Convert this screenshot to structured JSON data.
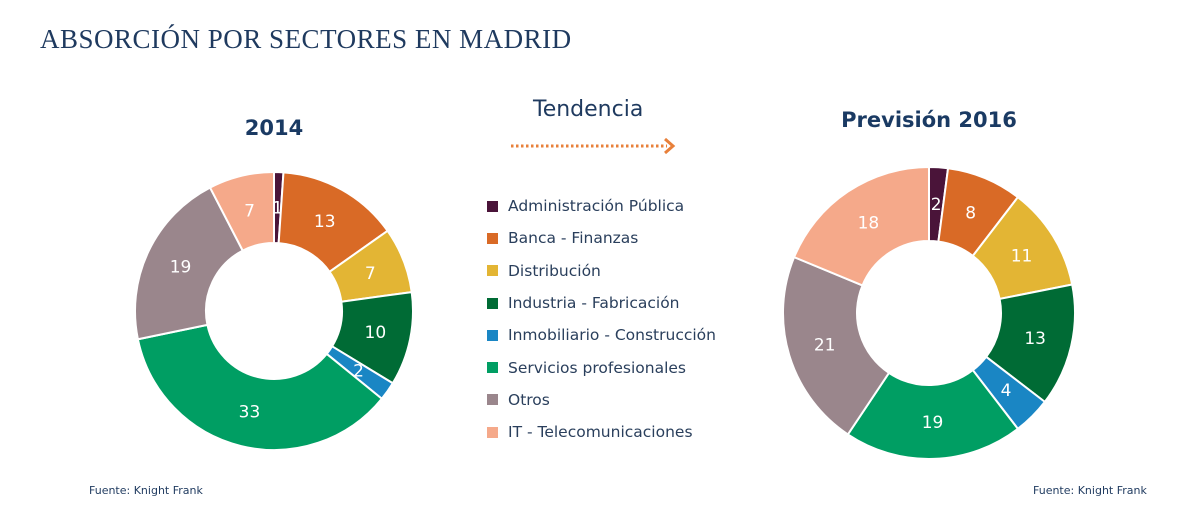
{
  "title": "ABSORCIÓN POR SECTORES EN MADRID",
  "trend_label": "Tendencia",
  "source_left": "Fuente: Knight Frank",
  "source_right": "Fuente: Knight Frank",
  "chart_data": [
    {
      "type": "pie",
      "variant": "donut",
      "title": "2014",
      "categories": [
        "Administración Pública",
        "Banca - Finanzas",
        "Distribución",
        "Industria - Fabricación",
        "Inmobiliario - Construcción",
        "Servicios profesionales",
        "Otros",
        "IT - Telecomunicaciones"
      ],
      "values": [
        1,
        13,
        7,
        10,
        2,
        33,
        19,
        7
      ],
      "colors": [
        "#4a1439",
        "#d96a26",
        "#e3b534",
        "#006b35",
        "#1a86c4",
        "#009e63",
        "#9a868c",
        "#f5a98a"
      ],
      "legend_position": "right"
    },
    {
      "type": "pie",
      "variant": "donut",
      "title": "Previsión 2016",
      "categories": [
        "Administración Pública",
        "Banca - Finanzas",
        "Distribución",
        "Industria - Fabricación",
        "Inmobiliario - Construcción",
        "Servicios profesionales",
        "Otros",
        "IT - Telecomunicaciones"
      ],
      "values": [
        2,
        8,
        11,
        13,
        4,
        19,
        21,
        18
      ],
      "colors": [
        "#4a1439",
        "#d96a26",
        "#e3b534",
        "#006b35",
        "#1a86c4",
        "#009e63",
        "#9a868c",
        "#f5a98a"
      ],
      "legend_position": "left"
    }
  ]
}
